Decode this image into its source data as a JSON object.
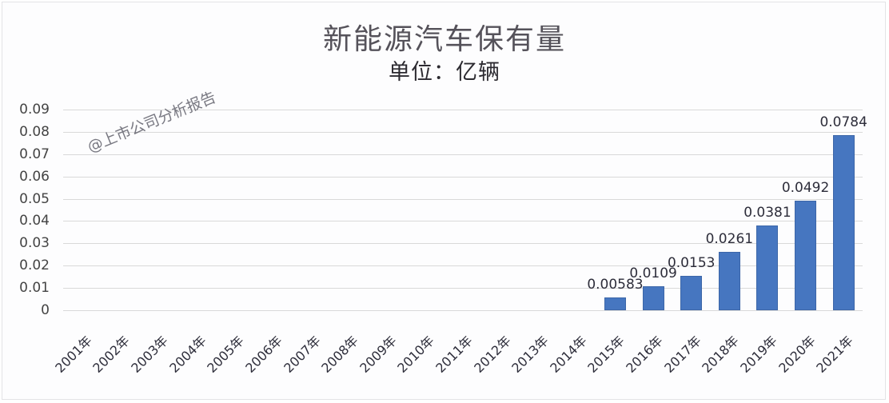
{
  "title": "新能源汽车保有量",
  "subtitle": "单位：亿辆",
  "watermark": "@上市公司分析报告",
  "colors": {
    "bar": "#4676c0",
    "grid": "#d9d9d9",
    "background": "#fdfdfe"
  },
  "y_ticks": [
    "0.09",
    "0.08",
    "0.07",
    "0.06",
    "0.05",
    "0.04",
    "0.03",
    "0.02",
    "0.01",
    "0"
  ],
  "chart_data": {
    "type": "bar",
    "title": "新能源汽车保有量",
    "subtitle": "单位：亿辆",
    "xlabel": "",
    "ylabel": "",
    "ylim": [
      0,
      0.09
    ],
    "y_tick_step": 0.01,
    "grid": true,
    "legend": null,
    "categories": [
      "2001年",
      "2002年",
      "2003年",
      "2004年",
      "2005年",
      "2006年",
      "2007年",
      "2008年",
      "2009年",
      "2010年",
      "2011年",
      "2012年",
      "2013年",
      "2014年",
      "2015年",
      "2016年",
      "2017年",
      "2018年",
      "2019年",
      "2020年",
      "2021年"
    ],
    "values": [
      null,
      null,
      null,
      null,
      null,
      null,
      null,
      null,
      null,
      null,
      null,
      null,
      null,
      null,
      0.00583,
      0.0109,
      0.0153,
      0.0261,
      0.0381,
      0.0492,
      0.0784
    ],
    "data_labels": [
      "",
      "",
      "",
      "",
      "",
      "",
      "",
      "",
      "",
      "",
      "",
      "",
      "",
      "",
      "0.00583",
      "0.0109",
      "0.0153",
      "0.0261",
      "0.0381",
      "0.0492",
      "0.0784"
    ],
    "annotations": [
      "@上市公司分析报告"
    ]
  }
}
